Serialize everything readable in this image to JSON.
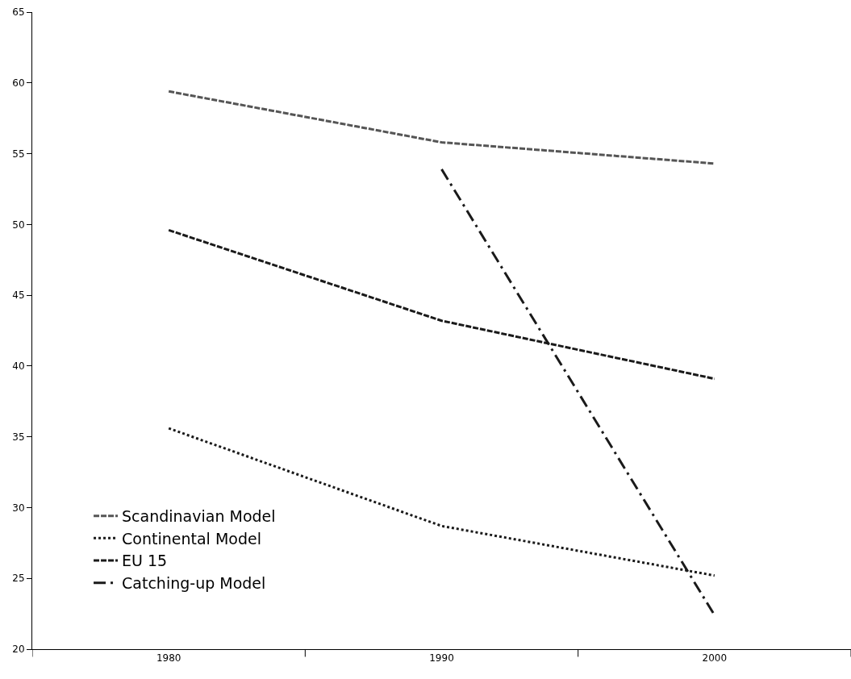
{
  "chart_data": {
    "type": "line",
    "categories": [
      "1980",
      "1990",
      "2000"
    ],
    "series": [
      {
        "name": "Scandinavian Model",
        "color": "#555555",
        "line_style": "dashed",
        "values": [
          59.4,
          55.8,
          54.3
        ]
      },
      {
        "name": "Continental Model",
        "color": "#1a1a1a",
        "line_style": "dotted",
        "values": [
          35.6,
          28.7,
          25.2
        ]
      },
      {
        "name": "EU 15",
        "color": "#1a1a1a",
        "line_style": "dashed",
        "values": [
          49.6,
          43.2,
          39.1
        ]
      },
      {
        "name": "Catching-up Model",
        "color": "#1a1a1a",
        "line_style": "dashdot",
        "values": [
          null,
          53.9,
          22.4
        ]
      }
    ],
    "ylim": [
      20,
      65
    ],
    "yticks": [
      20,
      25,
      30,
      35,
      40,
      45,
      50,
      55,
      60,
      65
    ],
    "grid": false,
    "legend": "bottom left",
    "marker": "none"
  }
}
